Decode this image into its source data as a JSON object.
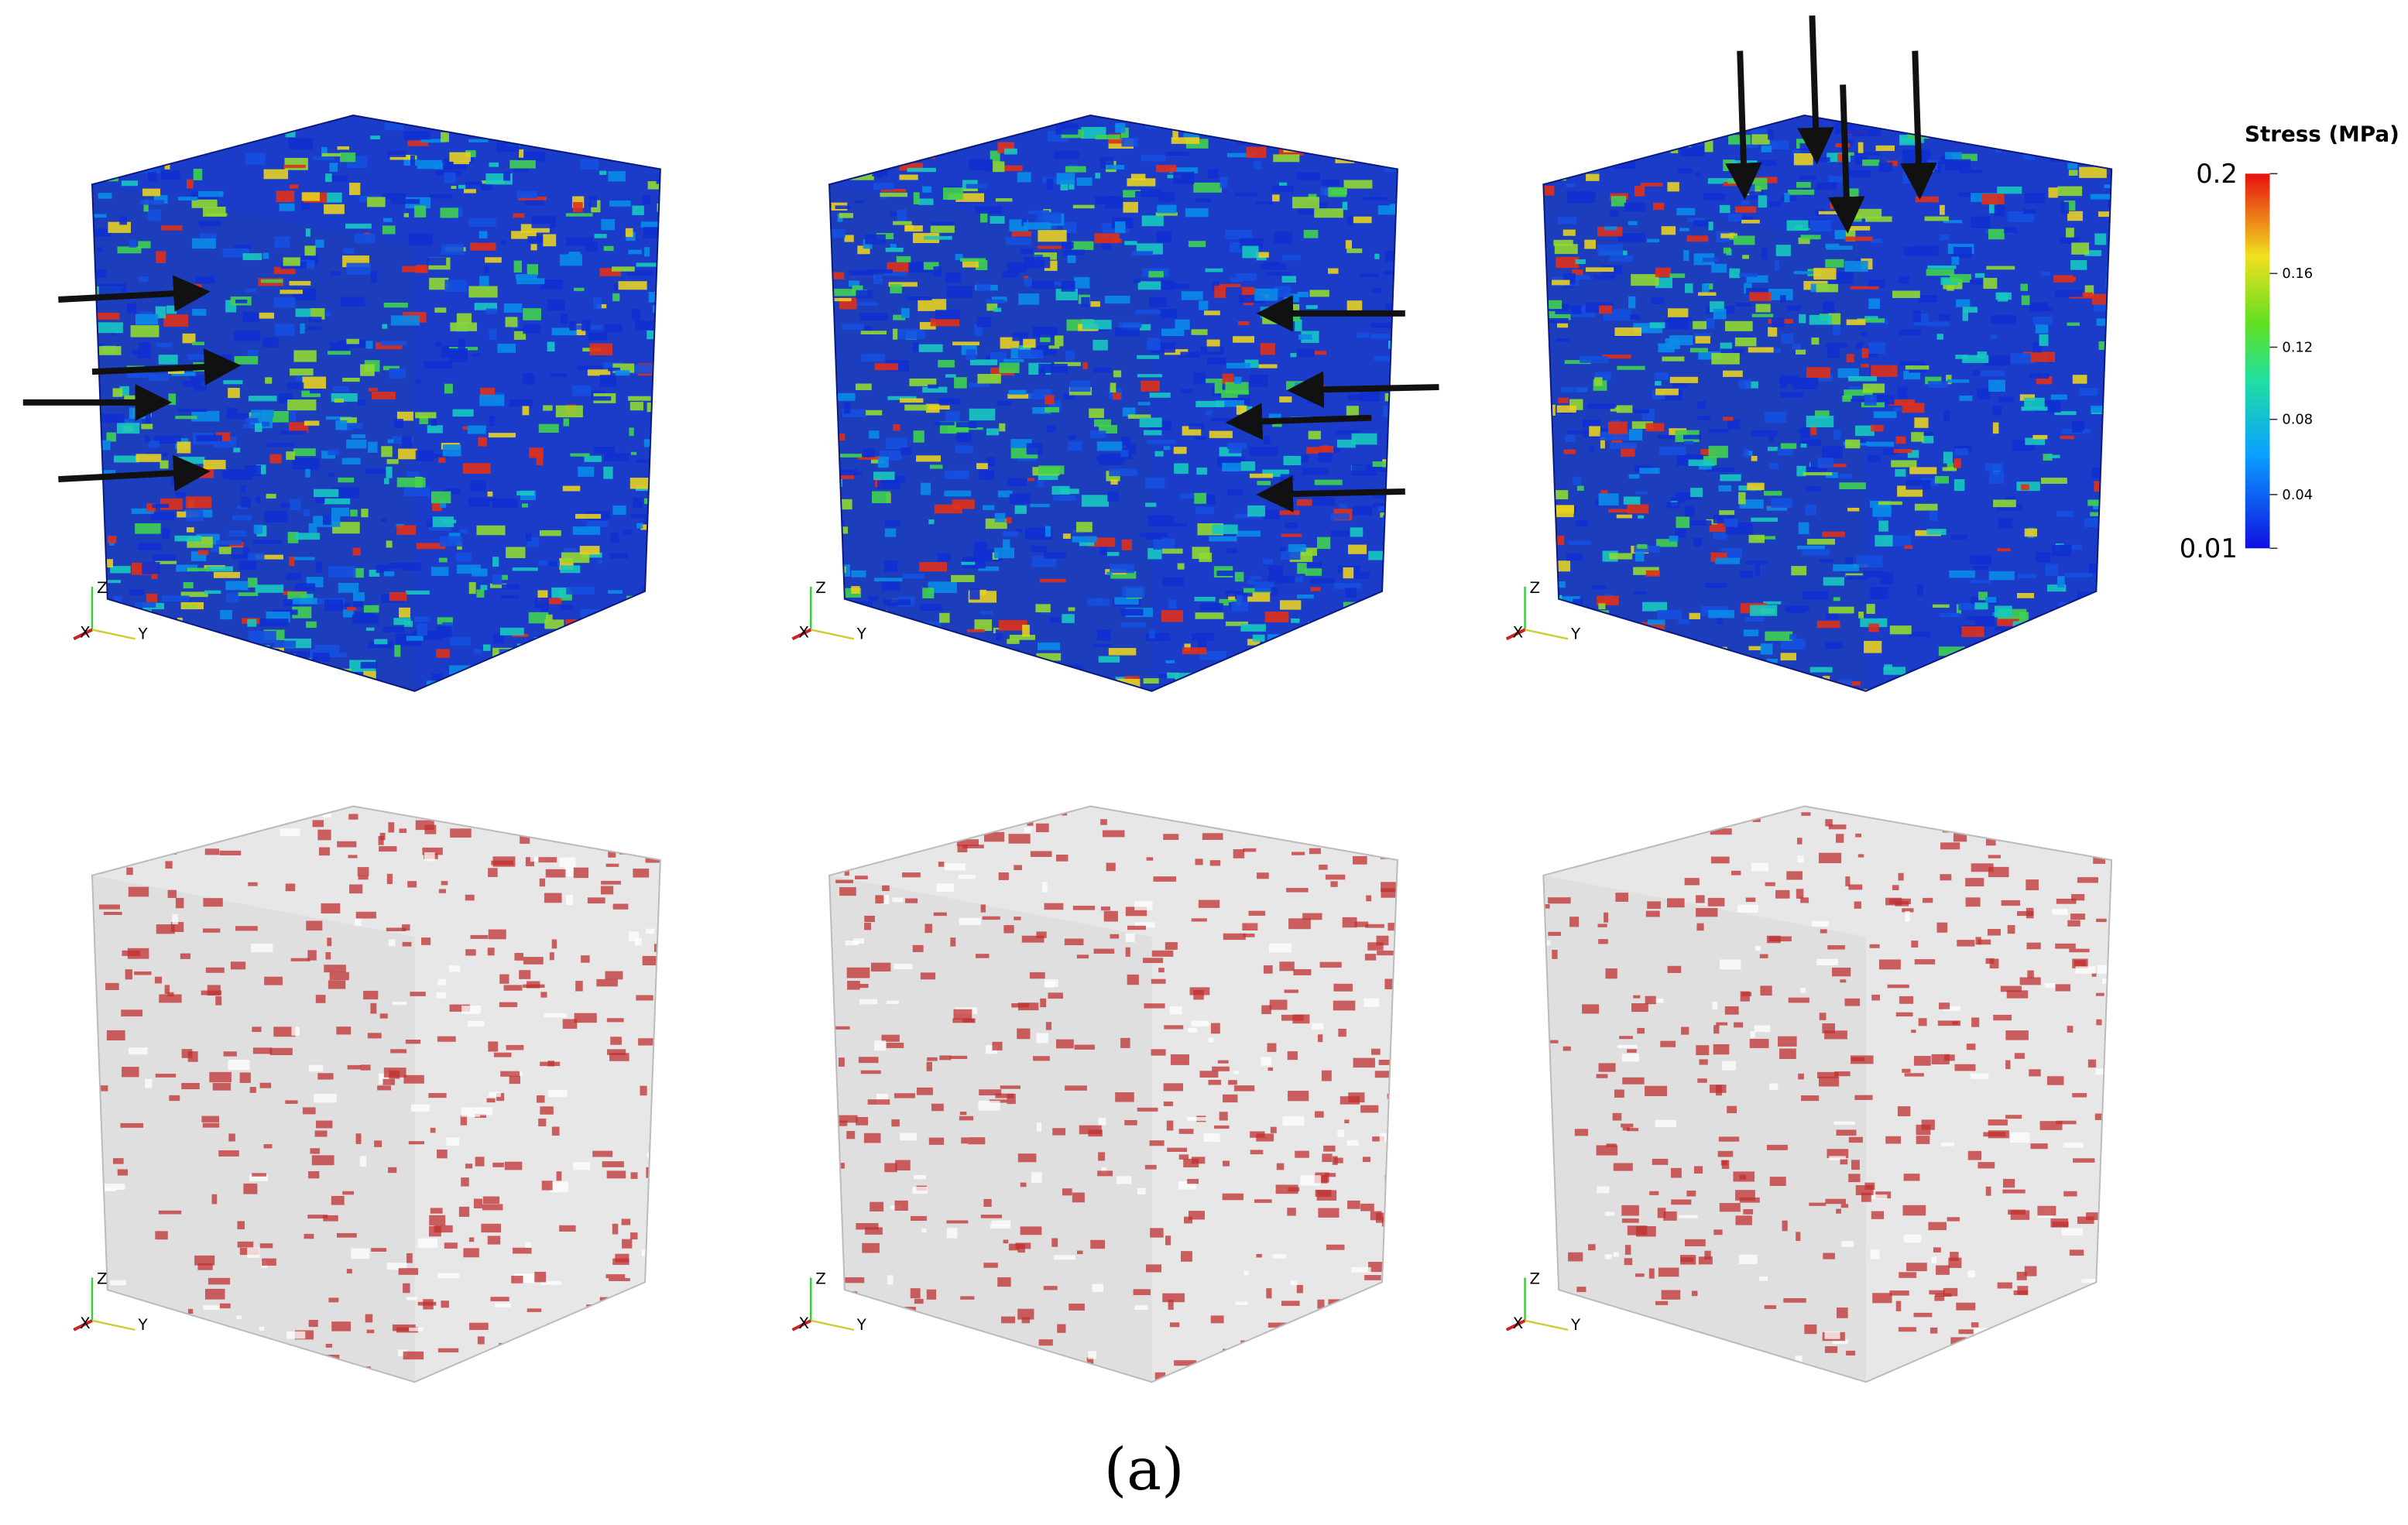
{
  "figure": {
    "caption": "(a)",
    "colorbar": {
      "title": "Stress (MPa)",
      "max": "0.2",
      "min": "0.01",
      "ticks": [
        "0.16",
        "0.12",
        "0.08",
        "0.04"
      ]
    },
    "panels": [
      {
        "axes": {
          "x": "X",
          "y": "Y",
          "z": "Z"
        }
      },
      {
        "axes": {
          "x": "X",
          "y": "Y",
          "z": "Z"
        }
      },
      {
        "axes": {
          "x": "X",
          "y": "Y",
          "z": "Z"
        }
      },
      {
        "axes": {
          "x": "X",
          "y": "Y",
          "z": "Z"
        }
      },
      {
        "axes": {
          "x": "X",
          "y": "Y",
          "z": "Z"
        }
      },
      {
        "axes": {
          "x": "X",
          "y": "Y",
          "z": "Z"
        }
      }
    ]
  }
}
